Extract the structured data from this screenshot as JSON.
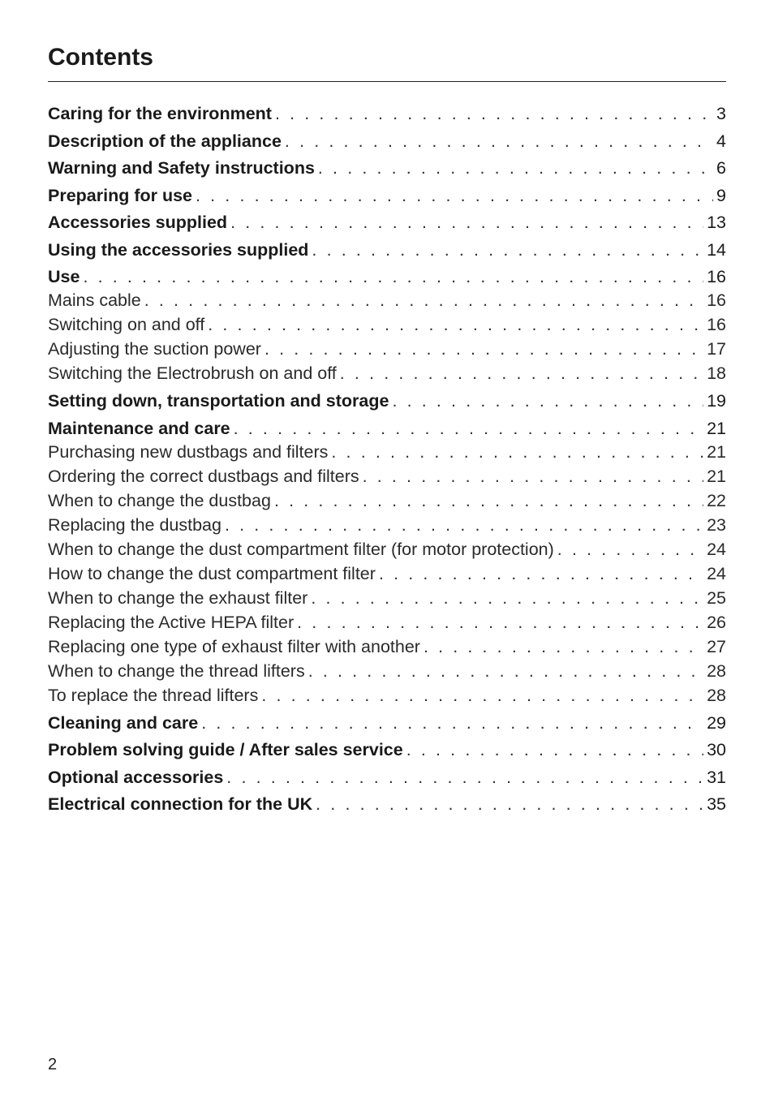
{
  "title": "Contents",
  "entries": [
    {
      "label": "Caring for the environment",
      "page": "3",
      "level": "main"
    },
    {
      "label": "Description of the appliance",
      "page": "4",
      "level": "main"
    },
    {
      "label": "Warning and Safety instructions",
      "page": "6",
      "level": "main"
    },
    {
      "label": "Preparing for use",
      "page": "9",
      "level": "main"
    },
    {
      "label": "Accessories supplied",
      "page": "13",
      "level": "main"
    },
    {
      "label": "Using the accessories supplied",
      "page": "14",
      "level": "main"
    },
    {
      "label": "Use",
      "page": "16",
      "level": "main"
    },
    {
      "label": "Mains cable",
      "page": "16",
      "level": "sub"
    },
    {
      "label": "Switching on and off",
      "page": "16",
      "level": "sub"
    },
    {
      "label": "Adjusting the suction power",
      "page": "17",
      "level": "sub"
    },
    {
      "label": "Switching the Electrobrush on and off",
      "page": "18",
      "level": "sub"
    },
    {
      "label": "Setting down, transportation and storage",
      "page": "19",
      "level": "main"
    },
    {
      "label": "Maintenance and care",
      "page": "21",
      "level": "main"
    },
    {
      "label": "Purchasing new dustbags and filters",
      "page": "21",
      "level": "sub"
    },
    {
      "label": "Ordering the correct dustbags and filters",
      "page": "21",
      "level": "sub"
    },
    {
      "label": "When to change the dustbag",
      "page": "22",
      "level": "sub"
    },
    {
      "label": "Replacing the dustbag",
      "page": "23",
      "level": "sub"
    },
    {
      "label": "When to change the dust compartment filter (for motor protection)",
      "page": "24",
      "level": "sub"
    },
    {
      "label": "How to change the dust compartment filter",
      "page": "24",
      "level": "sub"
    },
    {
      "label": "When to change the exhaust filter",
      "page": "25",
      "level": "sub"
    },
    {
      "label": "Replacing the Active HEPA filter",
      "page": "26",
      "level": "sub"
    },
    {
      "label": "Replacing one type of exhaust filter with another",
      "page": "27",
      "level": "sub"
    },
    {
      "label": "When to change the thread lifters",
      "page": "28",
      "level": "sub"
    },
    {
      "label": "To replace the thread lifters",
      "page": "28",
      "level": "sub"
    },
    {
      "label": "Cleaning and care",
      "page": "29",
      "level": "main"
    },
    {
      "label": "Problem solving guide / After sales service",
      "page": "30",
      "level": "main"
    },
    {
      "label": "Optional accessories",
      "page": "31",
      "level": "main"
    },
    {
      "label": "Electrical connection for the UK",
      "page": "35",
      "level": "main"
    }
  ],
  "page_number": "2"
}
